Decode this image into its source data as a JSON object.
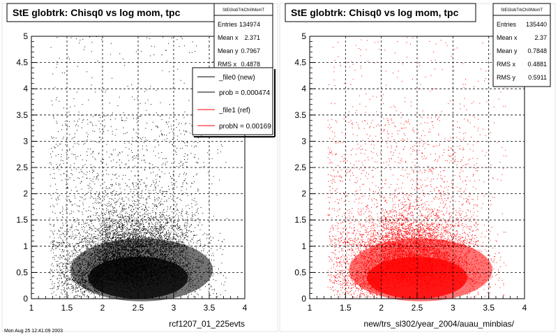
{
  "colors": {
    "left_points": "#000000",
    "right_points": "#ff0000",
    "grid": "#000000",
    "background": "#ffffff"
  },
  "panels": [
    {
      "title": "StE globtrk: Chisq0 vs log mom, tpc",
      "stats": {
        "name": "StEGlobTrkChi0MomT",
        "rows": [
          {
            "label": "Entries",
            "value": "134974"
          },
          {
            "label": "Mean x",
            "value": "2.371"
          },
          {
            "label": "Mean y",
            "value": "0.7967"
          },
          {
            "label": "RMS x",
            "value": "0.4878"
          }
        ]
      },
      "legend": [
        {
          "label": "_file0 (new)",
          "color": "#000000"
        },
        {
          "label": "prob = 0.000474",
          "color": "#000000"
        },
        {
          "label": "_file1 (ref)",
          "color": "#ff0000"
        },
        {
          "label": "probN = 0.00169",
          "color": "#ff0000"
        }
      ],
      "xlabel": "rcf1207_01_225evts"
    },
    {
      "title": "StE globtrk: Chisq0 vs log mom, tpc",
      "stats": {
        "name": "StEGlobTrkChi0MomT",
        "rows": [
          {
            "label": "Entries",
            "value": "135440"
          },
          {
            "label": "Mean x",
            "value": "2.37"
          },
          {
            "label": "Mean y",
            "value": "0.7848"
          },
          {
            "label": "RMS x",
            "value": "0.4881"
          },
          {
            "label": "RMS y",
            "value": "0.5911"
          }
        ]
      },
      "xlabel": "new/trs_sl302/year_2004/auau_minbias/"
    }
  ],
  "footer_text": "Mon Aug 25 12:41:09 2003",
  "chart_data": [
    {
      "type": "scatter",
      "title": "StE globtrk: Chisq0 vs log mom, tpc",
      "xlabel": "rcf1207_01_225evts",
      "ylabel": "",
      "xlim": [
        1,
        4
      ],
      "ylim": [
        0,
        5
      ],
      "x_ticks": [
        "1",
        "1.5",
        "2",
        "2.5",
        "3",
        "3.5",
        "4"
      ],
      "y_ticks": [
        "0",
        "0.5",
        "1",
        "1.5",
        "2",
        "2.5",
        "3",
        "3.5",
        "4",
        "4.5",
        "5"
      ],
      "grid": true,
      "legend_position": "top-right",
      "series": [
        {
          "name": "_file0 (new)",
          "color": "#000000",
          "entries": 134974,
          "mean_x": 2.371,
          "mean_y": 0.7967,
          "rms_x": 0.4878,
          "x_range": [
            1.25,
            3.75
          ],
          "y_range": [
            0,
            5
          ]
        }
      ]
    },
    {
      "type": "scatter",
      "title": "StE globtrk: Chisq0 vs log mom, tpc",
      "xlabel": "new/trs_sl302/year_2004/auau_minbias/",
      "ylabel": "",
      "xlim": [
        1,
        4
      ],
      "ylim": [
        0,
        5
      ],
      "x_ticks": [
        "1",
        "1.5",
        "2",
        "2.5",
        "3",
        "3.5",
        "4"
      ],
      "y_ticks": [
        "0",
        "0.5",
        "1",
        "1.5",
        "2",
        "2.5",
        "3",
        "3.5",
        "4",
        "4.5",
        "5"
      ],
      "grid": true,
      "series": [
        {
          "name": "",
          "color": "#ff0000",
          "entries": 135440,
          "mean_x": 2.37,
          "mean_y": 0.7848,
          "rms_x": 0.4881,
          "rms_y": 0.5911,
          "x_range": [
            1.25,
            3.75
          ],
          "y_range": [
            0,
            5
          ]
        }
      ]
    }
  ]
}
